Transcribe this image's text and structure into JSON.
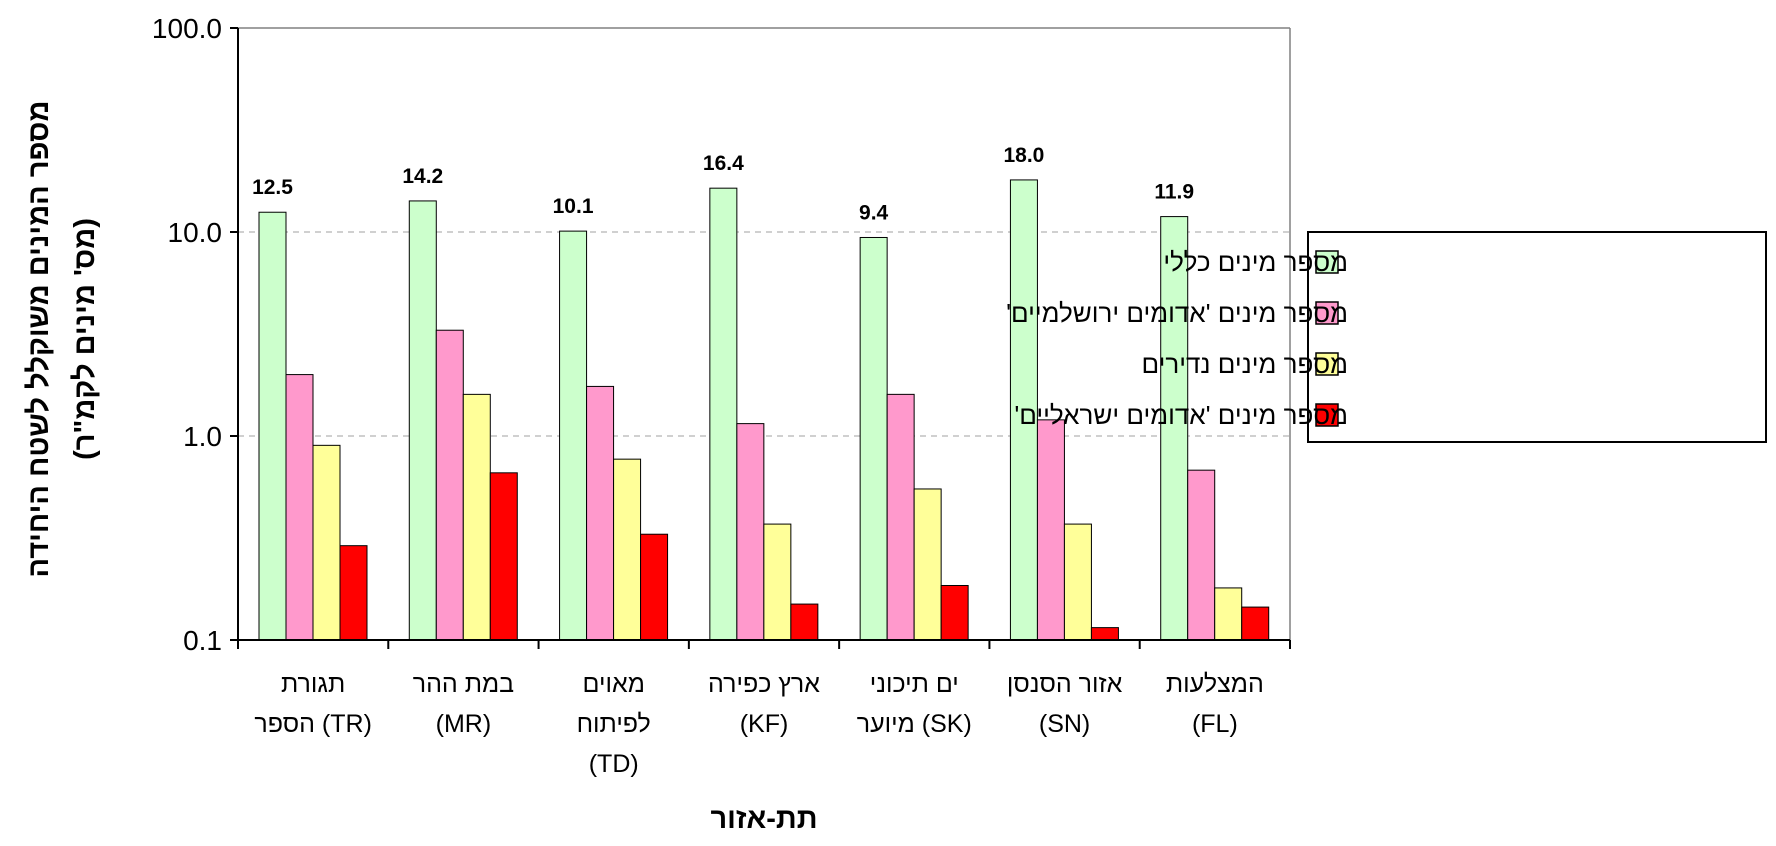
{
  "chart_data": {
    "type": "bar",
    "y_scale": "log",
    "ylim": [
      0.1,
      100
    ],
    "y_ticks": [
      "0.1",
      "1.0",
      "10.0",
      "100.0"
    ],
    "y_tick_values": [
      0.1,
      1,
      10,
      100
    ],
    "grid": "horizontal dashed",
    "legend_position": "right",
    "xlabel": "תת-אזור",
    "ylabel_lines": [
      "מספר המינים משוקלל לשטח היחידה",
      "(מס' מינים לקמ\"ר)"
    ],
    "categories": [
      {
        "lines": [
          "תגורת",
          "הספר (TR)"
        ]
      },
      {
        "lines": [
          "במת ההר",
          "(MR)"
        ]
      },
      {
        "lines": [
          "מאוים",
          "לפיתוח",
          "(TD)"
        ]
      },
      {
        "lines": [
          "ארץ כפירה",
          "(KF)"
        ]
      },
      {
        "lines": [
          "ים תיכוני",
          "מיוער (SK)"
        ]
      },
      {
        "lines": [
          "אזור הסנסן",
          "(SN)"
        ]
      },
      {
        "lines": [
          "המצלעות",
          "(FL)"
        ]
      }
    ],
    "series": [
      {
        "name": "מספר מינים כללי",
        "color": "#ccffcc",
        "values": [
          12.5,
          14.2,
          10.1,
          16.4,
          9.4,
          18.0,
          11.9
        ],
        "data_labels": [
          "12.5",
          "14.2",
          "10.1",
          "16.4",
          "9.4",
          "18.0",
          "11.9"
        ]
      },
      {
        "name": "מספר מינים 'אדומים ירושלמיים'",
        "color": "#ff99cc",
        "values": [
          2.0,
          3.3,
          1.75,
          1.15,
          1.6,
          1.2,
          0.68
        ]
      },
      {
        "name": "מספר מינים נדירים",
        "color": "#ffff99",
        "values": [
          0.9,
          1.6,
          0.77,
          0.37,
          0.55,
          0.37,
          0.18
        ]
      },
      {
        "name": "מספר מינים 'אדומים ישראליים'",
        "color": "#ff0000",
        "values": [
          0.29,
          0.66,
          0.33,
          0.15,
          0.185,
          0.115,
          0.145
        ]
      }
    ]
  }
}
